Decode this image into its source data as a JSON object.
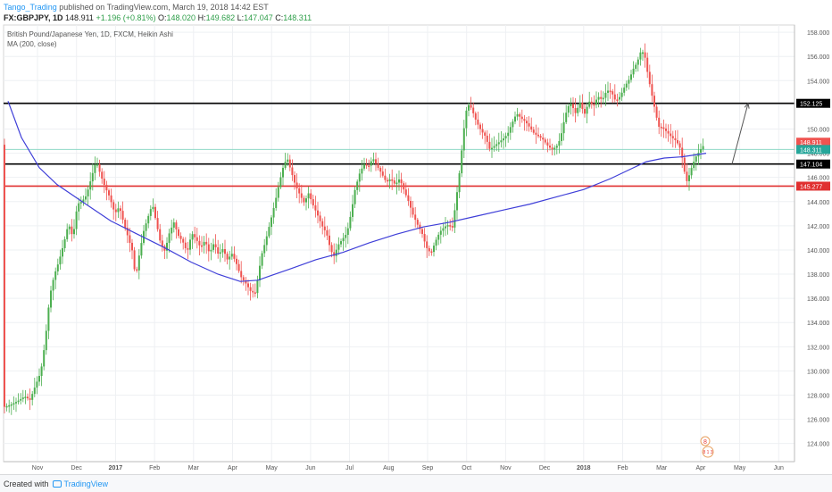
{
  "header": {
    "author": "Tango_Trading",
    "published": "published on TradingView.com, March 19, 2018 14:42 EST",
    "symbol": "FX:GBPJPY, 1D",
    "last": "148.911",
    "change": "+1.196 (+0.81%)",
    "open_label": "O:",
    "open": "148.020",
    "high_label": "H:",
    "high": "149.682",
    "low_label": "L:",
    "low": "147.047",
    "close_label": "C:",
    "close": "148.311"
  },
  "legend": {
    "title": "British Pound/Japanese Yen, 1D, FXCM, Heikin Ashi",
    "indicator": "MA (200, close)"
  },
  "footer": {
    "created_with": "Created with",
    "brand": "TradingView"
  },
  "colors": {
    "up": "#4caf50",
    "down": "#ef5350",
    "ma": "#3f3fd8",
    "resistance": "#000000",
    "support": "#e03030",
    "current_line": "#8fd9c7",
    "arrow": "#555555"
  },
  "chart_data": {
    "type": "candlestick",
    "title": "British Pound/Japanese Yen, 1D, FXCM, Heikin Ashi",
    "x_ticks": [
      "Nov",
      "Dec",
      "2017",
      "Feb",
      "Mar",
      "Apr",
      "May",
      "Jun",
      "Jul",
      "Aug",
      "Sep",
      "Oct",
      "Nov",
      "Dec",
      "2018",
      "Feb",
      "Mar",
      "Apr",
      "May",
      "Jun"
    ],
    "y_ticks": [
      124,
      126,
      128,
      130,
      132,
      134,
      136,
      138,
      140,
      142,
      144,
      146,
      148,
      150,
      152,
      154,
      156,
      158
    ],
    "ylim": [
      122.5,
      158.6
    ],
    "price_path": [
      {
        "x": 0,
        "y": 127.0
      },
      {
        "x": 8,
        "y": 127.2
      },
      {
        "x": 16,
        "y": 127.5
      },
      {
        "x": 24,
        "y": 127.9
      },
      {
        "x": 30,
        "y": 127.6
      },
      {
        "x": 36,
        "y": 128.8
      },
      {
        "x": 42,
        "y": 129.9
      },
      {
        "x": 47,
        "y": 132.5
      },
      {
        "x": 52,
        "y": 136.2
      },
      {
        "x": 57,
        "y": 137.9
      },
      {
        "x": 62,
        "y": 139.0
      },
      {
        "x": 68,
        "y": 140.6
      },
      {
        "x": 73,
        "y": 142.2
      },
      {
        "x": 78,
        "y": 141.0
      },
      {
        "x": 83,
        "y": 143.8
      },
      {
        "x": 88,
        "y": 144.0
      },
      {
        "x": 93,
        "y": 144.5
      },
      {
        "x": 98,
        "y": 145.8
      },
      {
        "x": 104,
        "y": 147.4
      },
      {
        "x": 109,
        "y": 146.2
      },
      {
        "x": 114,
        "y": 145.2
      },
      {
        "x": 119,
        "y": 144.4
      },
      {
        "x": 125,
        "y": 143.0
      },
      {
        "x": 130,
        "y": 143.6
      },
      {
        "x": 135,
        "y": 142.2
      },
      {
        "x": 140,
        "y": 141.0
      },
      {
        "x": 145,
        "y": 139.8
      },
      {
        "x": 148,
        "y": 137.6
      },
      {
        "x": 152,
        "y": 139.5
      },
      {
        "x": 157,
        "y": 141.5
      },
      {
        "x": 162,
        "y": 142.7
      },
      {
        "x": 167,
        "y": 143.8
      },
      {
        "x": 171,
        "y": 142.4
      },
      {
        "x": 176,
        "y": 140.6
      },
      {
        "x": 181,
        "y": 139.9
      },
      {
        "x": 186,
        "y": 141.4
      },
      {
        "x": 191,
        "y": 142.3
      },
      {
        "x": 196,
        "y": 141.2
      },
      {
        "x": 201,
        "y": 140.7
      },
      {
        "x": 206,
        "y": 139.8
      },
      {
        "x": 211,
        "y": 141.4
      },
      {
        "x": 216,
        "y": 140.9
      },
      {
        "x": 221,
        "y": 140.2
      },
      {
        "x": 226,
        "y": 140.8
      },
      {
        "x": 231,
        "y": 139.7
      },
      {
        "x": 236,
        "y": 140.6
      },
      {
        "x": 241,
        "y": 139.6
      },
      {
        "x": 246,
        "y": 140.1
      },
      {
        "x": 251,
        "y": 139.2
      },
      {
        "x": 256,
        "y": 139.7
      },
      {
        "x": 261,
        "y": 138.9
      },
      {
        "x": 266,
        "y": 137.8
      },
      {
        "x": 272,
        "y": 137.2
      },
      {
        "x": 277,
        "y": 136.6
      },
      {
        "x": 282,
        "y": 136.4
      },
      {
        "x": 285,
        "y": 137.6
      },
      {
        "x": 289,
        "y": 139.5
      },
      {
        "x": 294,
        "y": 140.8
      },
      {
        "x": 299,
        "y": 142.3
      },
      {
        "x": 304,
        "y": 143.8
      },
      {
        "x": 309,
        "y": 145.5
      },
      {
        "x": 314,
        "y": 147.0
      },
      {
        "x": 318,
        "y": 147.6
      },
      {
        "x": 322,
        "y": 146.6
      },
      {
        "x": 327,
        "y": 145.4
      },
      {
        "x": 332,
        "y": 144.6
      },
      {
        "x": 337,
        "y": 143.9
      },
      {
        "x": 342,
        "y": 144.7
      },
      {
        "x": 347,
        "y": 143.7
      },
      {
        "x": 352,
        "y": 142.9
      },
      {
        "x": 357,
        "y": 142.0
      },
      {
        "x": 362,
        "y": 141.4
      },
      {
        "x": 366,
        "y": 140.2
      },
      {
        "x": 370,
        "y": 139.4
      },
      {
        "x": 375,
        "y": 140.4
      },
      {
        "x": 380,
        "y": 140.9
      },
      {
        "x": 385,
        "y": 141.4
      },
      {
        "x": 390,
        "y": 143.2
      },
      {
        "x": 394,
        "y": 145.0
      },
      {
        "x": 399,
        "y": 146.3
      },
      {
        "x": 404,
        "y": 147.1
      },
      {
        "x": 409,
        "y": 146.9
      },
      {
        "x": 414,
        "y": 147.6
      },
      {
        "x": 419,
        "y": 146.9
      },
      {
        "x": 424,
        "y": 146.3
      },
      {
        "x": 429,
        "y": 145.6
      },
      {
        "x": 434,
        "y": 145.9
      },
      {
        "x": 439,
        "y": 145.4
      },
      {
        "x": 444,
        "y": 145.9
      },
      {
        "x": 449,
        "y": 144.9
      },
      {
        "x": 454,
        "y": 144.0
      },
      {
        "x": 459,
        "y": 142.9
      },
      {
        "x": 464,
        "y": 142.1
      },
      {
        "x": 469,
        "y": 141.4
      },
      {
        "x": 474,
        "y": 140.2
      },
      {
        "x": 479,
        "y": 139.7
      },
      {
        "x": 484,
        "y": 140.7
      },
      {
        "x": 489,
        "y": 141.5
      },
      {
        "x": 494,
        "y": 141.9
      },
      {
        "x": 499,
        "y": 142.1
      },
      {
        "x": 503,
        "y": 141.8
      },
      {
        "x": 507,
        "y": 144.0
      },
      {
        "x": 511,
        "y": 146.4
      },
      {
        "x": 514,
        "y": 148.6
      },
      {
        "x": 518,
        "y": 151.4
      },
      {
        "x": 522,
        "y": 152.1
      },
      {
        "x": 526,
        "y": 151.4
      },
      {
        "x": 530,
        "y": 150.6
      },
      {
        "x": 535,
        "y": 149.9
      },
      {
        "x": 540,
        "y": 149.4
      },
      {
        "x": 545,
        "y": 148.3
      },
      {
        "x": 550,
        "y": 148.6
      },
      {
        "x": 555,
        "y": 148.9
      },
      {
        "x": 560,
        "y": 149.2
      },
      {
        "x": 565,
        "y": 149.6
      },
      {
        "x": 570,
        "y": 150.5
      },
      {
        "x": 575,
        "y": 151.3
      },
      {
        "x": 580,
        "y": 150.9
      },
      {
        "x": 585,
        "y": 150.6
      },
      {
        "x": 590,
        "y": 150.1
      },
      {
        "x": 595,
        "y": 149.6
      },
      {
        "x": 600,
        "y": 149.4
      },
      {
        "x": 605,
        "y": 149.1
      },
      {
        "x": 610,
        "y": 148.6
      },
      {
        "x": 615,
        "y": 148.3
      },
      {
        "x": 620,
        "y": 148.6
      },
      {
        "x": 624,
        "y": 149.2
      },
      {
        "x": 628,
        "y": 150.6
      },
      {
        "x": 632,
        "y": 151.8
      },
      {
        "x": 636,
        "y": 152.1
      },
      {
        "x": 641,
        "y": 151.3
      },
      {
        "x": 646,
        "y": 152.2
      },
      {
        "x": 651,
        "y": 151.2
      },
      {
        "x": 656,
        "y": 152.3
      },
      {
        "x": 661,
        "y": 151.9
      },
      {
        "x": 666,
        "y": 152.7
      },
      {
        "x": 671,
        "y": 152.4
      },
      {
        "x": 676,
        "y": 153.2
      },
      {
        "x": 681,
        "y": 153.1
      },
      {
        "x": 686,
        "y": 152.3
      },
      {
        "x": 691,
        "y": 152.7
      },
      {
        "x": 696,
        "y": 153.5
      },
      {
        "x": 701,
        "y": 154.1
      },
      {
        "x": 706,
        "y": 155.0
      },
      {
        "x": 710,
        "y": 155.5
      },
      {
        "x": 714,
        "y": 156.4
      },
      {
        "x": 718,
        "y": 156.3
      },
      {
        "x": 722,
        "y": 154.5
      },
      {
        "x": 726,
        "y": 153.0
      },
      {
        "x": 730,
        "y": 151.6
      },
      {
        "x": 734,
        "y": 150.2
      },
      {
        "x": 739,
        "y": 150.1
      },
      {
        "x": 744,
        "y": 149.7
      },
      {
        "x": 749,
        "y": 149.3
      },
      {
        "x": 754,
        "y": 149.0
      },
      {
        "x": 759,
        "y": 148.3
      },
      {
        "x": 763,
        "y": 146.5
      },
      {
        "x": 766,
        "y": 145.6
      },
      {
        "x": 770,
        "y": 146.6
      },
      {
        "x": 775,
        "y": 147.6
      },
      {
        "x": 780,
        "y": 148.2
      },
      {
        "x": 785,
        "y": 148.7
      }
    ],
    "ma200_path": [
      {
        "x": 5,
        "y": 152.3
      },
      {
        "x": 20,
        "y": 149.3
      },
      {
        "x": 40,
        "y": 146.8
      },
      {
        "x": 60,
        "y": 145.4
      },
      {
        "x": 90,
        "y": 143.9
      },
      {
        "x": 120,
        "y": 142.4
      },
      {
        "x": 150,
        "y": 141.3
      },
      {
        "x": 180,
        "y": 140.2
      },
      {
        "x": 210,
        "y": 139.0
      },
      {
        "x": 240,
        "y": 138.0
      },
      {
        "x": 265,
        "y": 137.4
      },
      {
        "x": 285,
        "y": 137.5
      },
      {
        "x": 300,
        "y": 137.9
      },
      {
        "x": 320,
        "y": 138.4
      },
      {
        "x": 350,
        "y": 139.2
      },
      {
        "x": 380,
        "y": 139.8
      },
      {
        "x": 410,
        "y": 140.6
      },
      {
        "x": 440,
        "y": 141.3
      },
      {
        "x": 470,
        "y": 141.9
      },
      {
        "x": 500,
        "y": 142.3
      },
      {
        "x": 530,
        "y": 142.8
      },
      {
        "x": 560,
        "y": 143.3
      },
      {
        "x": 590,
        "y": 143.8
      },
      {
        "x": 620,
        "y": 144.4
      },
      {
        "x": 650,
        "y": 145.0
      },
      {
        "x": 680,
        "y": 145.9
      },
      {
        "x": 700,
        "y": 146.6
      },
      {
        "x": 720,
        "y": 147.3
      },
      {
        "x": 740,
        "y": 147.6
      },
      {
        "x": 760,
        "y": 147.7
      },
      {
        "x": 787,
        "y": 148.0
      }
    ],
    "horizontal_levels": [
      {
        "label": "152.125",
        "y": 152.125,
        "color": "#000000"
      },
      {
        "label": "147.104",
        "y": 147.104,
        "color": "#000000"
      },
      {
        "label": "145.277",
        "y": 145.277,
        "color": "#e03030"
      }
    ],
    "price_badges": [
      {
        "label": "148.911",
        "y": 148.911,
        "color": "#ef5350"
      },
      {
        "label": "148.311",
        "y": 148.311,
        "color": "#26a69a"
      }
    ],
    "projection_arrow": {
      "from": {
        "x": 816,
        "y": 147.104
      },
      "to": {
        "x": 834,
        "y": 152.125
      }
    },
    "events_badge": {
      "top": "8",
      "bottom": "8 1 3"
    }
  }
}
